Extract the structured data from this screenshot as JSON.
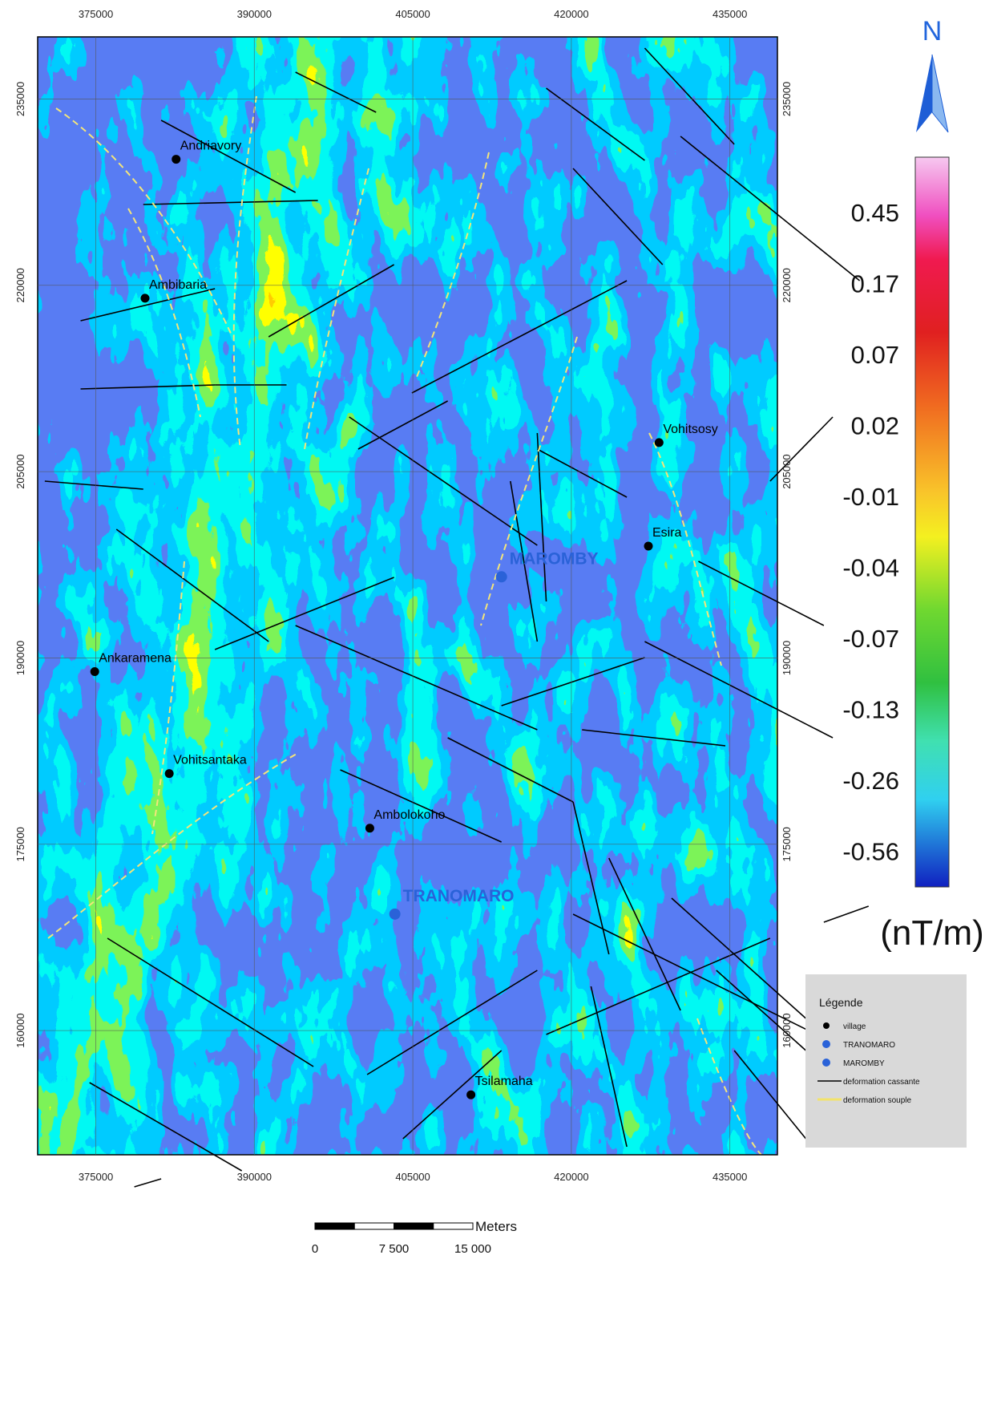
{
  "map": {
    "xlim": [
      369500,
      439500
    ],
    "ylim": [
      150000,
      240000
    ],
    "xticks": [
      375000,
      390000,
      405000,
      420000,
      435000
    ],
    "yticks": [
      235000,
      220000,
      205000,
      190000,
      175000,
      160000
    ],
    "places": [
      {
        "name": "Andriavory",
        "x": 382600,
        "y": 230150,
        "color": "#000000"
      },
      {
        "name": "Ambibaria",
        "x": 379660,
        "y": 218960,
        "color": "#000000"
      },
      {
        "name": "Vohitsosy",
        "x": 428300,
        "y": 207340,
        "color": "#000000"
      },
      {
        "name": "Esira",
        "x": 427290,
        "y": 199000,
        "color": "#000000"
      },
      {
        "name": "MAROMBY",
        "x": 413390,
        "y": 196530,
        "color": "#2a62d8"
      },
      {
        "name": "Ankaramena",
        "x": 374900,
        "y": 188900,
        "color": "#000000"
      },
      {
        "name": "Vohitsantaka",
        "x": 381950,
        "y": 180690,
        "color": "#000000"
      },
      {
        "name": "Ambolokoho",
        "x": 400930,
        "y": 176290,
        "color": "#000000"
      },
      {
        "name": "TRANOMARO",
        "x": 403300,
        "y": 169380,
        "color": "#2a62d8"
      },
      {
        "name": "Tsilamaha",
        "x": 410500,
        "y": 154830,
        "color": "#000000"
      }
    ]
  },
  "north": "N",
  "colorbar": {
    "labels": [
      0.45,
      0.17,
      0.07,
      0.02,
      -0.01,
      -0.04,
      -0.07,
      -0.13,
      -0.26,
      -0.56
    ],
    "unit": "(nT/m)"
  },
  "legend": {
    "title": "Légende",
    "items": [
      {
        "label": "village",
        "color": "#000000"
      },
      {
        "label": "TRANOMARO",
        "color": "#2a62d8"
      },
      {
        "label": "MAROMBY",
        "color": "#2a62d8"
      },
      {
        "label": "deformation cassante",
        "color": "#000000"
      },
      {
        "label": "deformation souple",
        "color": "#f2e36a"
      }
    ]
  },
  "scale_bar": {
    "unit": "Meters",
    "ticks": [
      0,
      {
        "value": 7500,
        "label": "7 500"
      },
      {
        "value": 15000,
        "label": "15 000"
      }
    ]
  }
}
